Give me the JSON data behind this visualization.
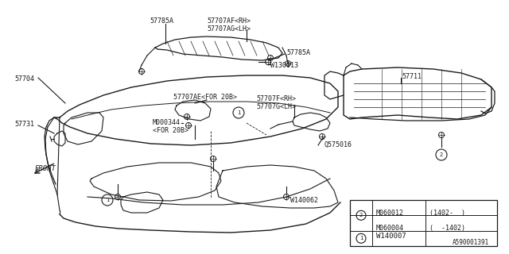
{
  "bg_color": "#ffffff",
  "line_color": "#1a1a1a",
  "text_color": "#1a1a1a",
  "part_number_1": "W140007",
  "part_number_2a": "M060004",
  "part_number_2a_note": "(  -1402)",
  "part_number_2b": "M060012",
  "part_number_2b_note": "(1402-  )",
  "diagram_id": "A590001391",
  "label_57785A_1": "57785A",
  "label_57707AF": "57707AF<RH>",
  "label_57707AG": "57707AG<LH>",
  "label_57785A_2": "57785A",
  "label_W130013": "W130013",
  "label_57704": "57704",
  "label_57707F": "57707F<RH>",
  "label_57707G": "57707G<LH>",
  "label_57711": "57711",
  "label_57707AE": "57707AE<FOR 20B>",
  "label_57731": "57731",
  "label_M000344": "M000344",
  "label_FOR20B": "<FOR 20B>",
  "label_Q575016": "Q575016",
  "label_W140062": "W140062",
  "label_FRONT": "FRONT"
}
